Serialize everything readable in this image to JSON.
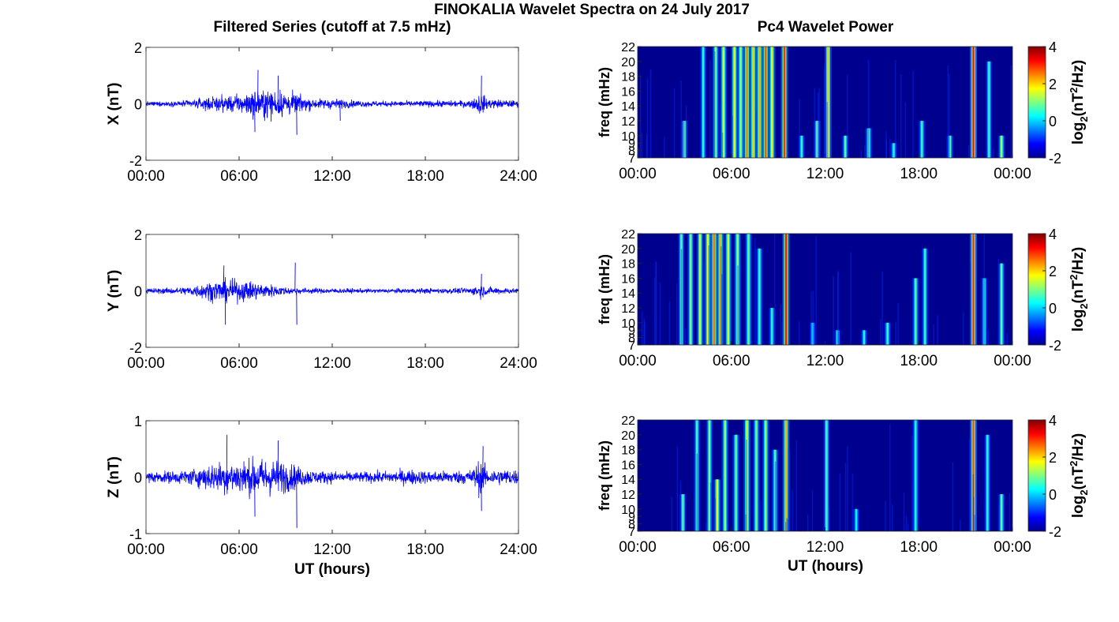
{
  "figure": {
    "title": "FINOKALIA Wavelet Spectra on 24 July 2017",
    "left_column_title": "Filtered Series (cutoff at 7.5 mHz)",
    "right_column_title": "Pc4 Wavelet Power",
    "x_label": "UT (hours)"
  },
  "colors": {
    "series_line": "#0000ff",
    "spectrogram_background": "#00008f",
    "colormap": "jet"
  },
  "chart_data": [
    {
      "type": "line",
      "name": "x-series",
      "ylabel": "X (nT)",
      "ylim": [
        -2,
        2
      ],
      "yticks": [
        "2",
        "0",
        "-2"
      ],
      "xlim": [
        0,
        24
      ],
      "xticks": [
        "00:00",
        "06:00",
        "12:00",
        "18:00",
        "24:00"
      ],
      "xtick_values": [
        0,
        6,
        12,
        18,
        24
      ],
      "amplitude_envelope": {
        "hours": [
          0,
          2,
          3,
          4,
          5,
          6,
          7,
          8,
          9,
          10,
          11,
          12,
          13,
          14,
          16,
          18,
          20,
          21,
          21.5,
          22,
          23,
          24
        ],
        "amplitude": [
          0.08,
          0.1,
          0.15,
          0.25,
          0.3,
          0.35,
          0.5,
          0.55,
          0.5,
          0.3,
          0.18,
          0.2,
          0.15,
          0.12,
          0.1,
          0.12,
          0.12,
          0.15,
          0.45,
          0.2,
          0.15,
          0.12
        ]
      },
      "spikes": [
        {
          "hour": 7.2,
          "y": 1.2
        },
        {
          "hour": 8.5,
          "y": 1.0
        },
        {
          "hour": 9.7,
          "y": -1.1
        },
        {
          "hour": 7.0,
          "y": -1.0
        },
        {
          "hour": 21.6,
          "y": 1.0
        },
        {
          "hour": 12.5,
          "y": -0.6
        }
      ]
    },
    {
      "type": "heatmap",
      "name": "x-power",
      "ylabel": "freq (mHz)",
      "yticks": [
        "7",
        "8",
        "9",
        "10",
        "12",
        "14",
        "16",
        "18",
        "20",
        "22"
      ],
      "ytick_values": [
        7,
        8,
        9,
        10,
        12,
        14,
        16,
        18,
        20,
        22
      ],
      "ylim": [
        7,
        22
      ],
      "xlim": [
        0,
        24
      ],
      "xticks": [
        "00:00",
        "06:00",
        "12:00",
        "18:00",
        "00:00"
      ],
      "xtick_values": [
        0,
        6,
        12,
        18,
        24
      ],
      "colorbar": {
        "label": "log2(nT2/Hz)",
        "ticks": [
          "4",
          "2",
          "0",
          "-2"
        ],
        "tick_values": [
          4,
          2,
          0,
          -2
        ],
        "range": [
          -2,
          4
        ]
      },
      "events": [
        {
          "hour": 3.0,
          "f_low": 7,
          "f_high": 12,
          "level": 1.0
        },
        {
          "hour": 4.2,
          "f_low": 7,
          "f_high": 22,
          "level": 0.5
        },
        {
          "hour": 5.0,
          "f_low": 7,
          "f_high": 22,
          "level": 1.2
        },
        {
          "hour": 5.5,
          "f_low": 7,
          "f_high": 22,
          "level": 1.5
        },
        {
          "hour": 6.2,
          "f_low": 7,
          "f_high": 22,
          "level": 1.8
        },
        {
          "hour": 6.6,
          "f_low": 7,
          "f_high": 22,
          "level": 1.2
        },
        {
          "hour": 7.0,
          "f_low": 7,
          "f_high": 22,
          "level": 2.5
        },
        {
          "hour": 7.4,
          "f_low": 7,
          "f_high": 22,
          "level": 2.0
        },
        {
          "hour": 7.8,
          "f_low": 7,
          "f_high": 22,
          "level": 2.2
        },
        {
          "hour": 8.2,
          "f_low": 7,
          "f_high": 22,
          "level": 2.8
        },
        {
          "hour": 8.6,
          "f_low": 7,
          "f_high": 22,
          "level": 1.8
        },
        {
          "hour": 9.4,
          "f_low": 7,
          "f_high": 22,
          "level": 3.0
        },
        {
          "hour": 10.5,
          "f_low": 7,
          "f_high": 10,
          "level": 0.5
        },
        {
          "hour": 11.5,
          "f_low": 7,
          "f_high": 12,
          "level": 1.0
        },
        {
          "hour": 12.2,
          "f_low": 7,
          "f_high": 22,
          "level": 2.0
        },
        {
          "hour": 13.3,
          "f_low": 7,
          "f_high": 10,
          "level": 0.8
        },
        {
          "hour": 14.8,
          "f_low": 7,
          "f_high": 11,
          "level": 1.0
        },
        {
          "hour": 16.4,
          "f_low": 7,
          "f_high": 9,
          "level": 0.5
        },
        {
          "hour": 18.2,
          "f_low": 7,
          "f_high": 12,
          "level": 0.6
        },
        {
          "hour": 20.0,
          "f_low": 7,
          "f_high": 10,
          "level": 0.8
        },
        {
          "hour": 21.5,
          "f_low": 7,
          "f_high": 22,
          "level": 3.2
        },
        {
          "hour": 22.5,
          "f_low": 7,
          "f_high": 20,
          "level": 0.6
        },
        {
          "hour": 23.3,
          "f_low": 7,
          "f_high": 10,
          "level": 1.2
        }
      ]
    },
    {
      "type": "line",
      "name": "y-series",
      "ylabel": "Y (nT)",
      "ylim": [
        -2,
        2
      ],
      "yticks": [
        "2",
        "0",
        "-2"
      ],
      "xlim": [
        0,
        24
      ],
      "xticks": [
        "00:00",
        "06:00",
        "12:00",
        "18:00",
        "24:00"
      ],
      "xtick_values": [
        0,
        6,
        12,
        18,
        24
      ],
      "amplitude_envelope": {
        "hours": [
          0,
          2,
          3,
          4,
          5,
          6,
          7,
          8,
          9,
          10,
          11,
          12,
          14,
          16,
          18,
          20,
          21,
          21.5,
          22,
          23,
          24
        ],
        "amplitude": [
          0.1,
          0.12,
          0.2,
          0.35,
          0.45,
          0.4,
          0.35,
          0.25,
          0.15,
          0.12,
          0.1,
          0.1,
          0.08,
          0.08,
          0.1,
          0.1,
          0.12,
          0.3,
          0.15,
          0.12,
          0.1
        ]
      },
      "spikes": [
        {
          "hour": 5.0,
          "y": 0.9
        },
        {
          "hour": 5.1,
          "y": -1.2
        },
        {
          "hour": 9.6,
          "y": 1.0
        },
        {
          "hour": 9.7,
          "y": -1.2
        },
        {
          "hour": 21.6,
          "y": 0.6
        }
      ]
    },
    {
      "type": "heatmap",
      "name": "y-power",
      "ylabel": "freq (mHz)",
      "yticks": [
        "7",
        "8",
        "9",
        "10",
        "12",
        "14",
        "16",
        "18",
        "20",
        "22"
      ],
      "ytick_values": [
        7,
        8,
        9,
        10,
        12,
        14,
        16,
        18,
        20,
        22
      ],
      "ylim": [
        7,
        22
      ],
      "xlim": [
        0,
        24
      ],
      "xticks": [
        "00:00",
        "06:00",
        "12:00",
        "18:00",
        "00:00"
      ],
      "xtick_values": [
        0,
        6,
        12,
        18,
        24
      ],
      "colorbar": {
        "label": "log2(nT2/Hz)",
        "ticks": [
          "4",
          "2",
          "0",
          "-2"
        ],
        "tick_values": [
          4,
          2,
          0,
          -2
        ],
        "range": [
          -2,
          4
        ]
      },
      "events": [
        {
          "hour": 2.8,
          "f_low": 7,
          "f_high": 22,
          "level": 0.8
        },
        {
          "hour": 3.4,
          "f_low": 7,
          "f_high": 22,
          "level": 1.0
        },
        {
          "hour": 4.0,
          "f_low": 7,
          "f_high": 22,
          "level": 1.5
        },
        {
          "hour": 4.5,
          "f_low": 7,
          "f_high": 22,
          "level": 1.8
        },
        {
          "hour": 4.9,
          "f_low": 7,
          "f_high": 22,
          "level": 2.6
        },
        {
          "hour": 5.3,
          "f_low": 7,
          "f_high": 22,
          "level": 2.2
        },
        {
          "hour": 5.8,
          "f_low": 7,
          "f_high": 22,
          "level": 1.6
        },
        {
          "hour": 6.4,
          "f_low": 7,
          "f_high": 22,
          "level": 1.2
        },
        {
          "hour": 7.1,
          "f_low": 7,
          "f_high": 22,
          "level": 0.9
        },
        {
          "hour": 7.8,
          "f_low": 7,
          "f_high": 20,
          "level": 0.6
        },
        {
          "hour": 8.6,
          "f_low": 7,
          "f_high": 12,
          "level": 0.5
        },
        {
          "hour": 9.5,
          "f_low": 7,
          "f_high": 22,
          "level": 3.2
        },
        {
          "hour": 11.2,
          "f_low": 7,
          "f_high": 10,
          "level": 0.3
        },
        {
          "hour": 12.8,
          "f_low": 7,
          "f_high": 9,
          "level": 0.5
        },
        {
          "hour": 14.5,
          "f_low": 7,
          "f_high": 9,
          "level": 0.4
        },
        {
          "hour": 16.0,
          "f_low": 7,
          "f_high": 10,
          "level": 0.6
        },
        {
          "hour": 17.8,
          "f_low": 7,
          "f_high": 16,
          "level": 0.8
        },
        {
          "hour": 18.4,
          "f_low": 7,
          "f_high": 20,
          "level": 0.6
        },
        {
          "hour": 21.5,
          "f_low": 7,
          "f_high": 22,
          "level": 3.0
        },
        {
          "hour": 22.2,
          "f_low": 7,
          "f_high": 16,
          "level": 0.5
        },
        {
          "hour": 23.3,
          "f_low": 7,
          "f_high": 18,
          "level": 0.8
        }
      ]
    },
    {
      "type": "line",
      "name": "z-series",
      "ylabel": "Z (nT)",
      "ylim": [
        -1,
        1
      ],
      "yticks": [
        "1",
        "0",
        "-1"
      ],
      "xlim": [
        0,
        24
      ],
      "xticks": [
        "00:00",
        "06:00",
        "12:00",
        "18:00",
        "24:00"
      ],
      "xtick_values": [
        0,
        6,
        12,
        18,
        24
      ],
      "amplitude_envelope": {
        "hours": [
          0,
          2,
          3,
          4,
          5,
          6,
          7,
          8,
          9,
          10,
          11,
          12,
          13,
          14,
          16,
          17,
          18,
          20,
          21,
          21.5,
          22,
          23,
          24
        ],
        "amplitude": [
          0.1,
          0.12,
          0.15,
          0.25,
          0.3,
          0.32,
          0.35,
          0.35,
          0.3,
          0.18,
          0.12,
          0.12,
          0.1,
          0.1,
          0.12,
          0.15,
          0.12,
          0.12,
          0.15,
          0.35,
          0.15,
          0.15,
          0.15
        ]
      },
      "spikes": [
        {
          "hour": 5.2,
          "y": 0.75
        },
        {
          "hour": 8.5,
          "y": 0.65
        },
        {
          "hour": 9.7,
          "y": -0.9
        },
        {
          "hour": 7.0,
          "y": -0.7
        },
        {
          "hour": 21.7,
          "y": 0.55
        },
        {
          "hour": 21.6,
          "y": -0.6
        }
      ]
    },
    {
      "type": "heatmap",
      "name": "z-power",
      "ylabel": "freq (mHz)",
      "yticks": [
        "7",
        "8",
        "9",
        "10",
        "12",
        "14",
        "16",
        "18",
        "20",
        "22"
      ],
      "ytick_values": [
        7,
        8,
        9,
        10,
        12,
        14,
        16,
        18,
        20,
        22
      ],
      "ylim": [
        7,
        22
      ],
      "xlim": [
        0,
        24
      ],
      "xticks": [
        "00:00",
        "06:00",
        "12:00",
        "18:00",
        "00:00"
      ],
      "xtick_values": [
        0,
        6,
        12,
        18,
        24
      ],
      "colorbar": {
        "label": "log2(nT2/Hz)",
        "ticks": [
          "4",
          "2",
          "0",
          "-2"
        ],
        "tick_values": [
          4,
          2,
          0,
          -2
        ],
        "range": [
          -2,
          4
        ]
      },
      "events": [
        {
          "hour": 2.9,
          "f_low": 7,
          "f_high": 12,
          "level": 0.8
        },
        {
          "hour": 3.8,
          "f_low": 7,
          "f_high": 22,
          "level": 0.7
        },
        {
          "hour": 4.6,
          "f_low": 7,
          "f_high": 22,
          "level": 1.0
        },
        {
          "hour": 5.1,
          "f_low": 7,
          "f_high": 14,
          "level": 1.8
        },
        {
          "hour": 5.6,
          "f_low": 7,
          "f_high": 22,
          "level": 1.2
        },
        {
          "hour": 6.3,
          "f_low": 7,
          "f_high": 20,
          "level": 0.9
        },
        {
          "hour": 7.0,
          "f_low": 7,
          "f_high": 22,
          "level": 1.6
        },
        {
          "hour": 7.6,
          "f_low": 7,
          "f_high": 22,
          "level": 1.0
        },
        {
          "hour": 8.2,
          "f_low": 7,
          "f_high": 22,
          "level": 1.2
        },
        {
          "hour": 8.8,
          "f_low": 7,
          "f_high": 18,
          "level": 0.8
        },
        {
          "hour": 9.5,
          "f_low": 7,
          "f_high": 22,
          "level": 2.2
        },
        {
          "hour": 12.1,
          "f_low": 7,
          "f_high": 22,
          "level": 0.7
        },
        {
          "hour": 14.0,
          "f_low": 7,
          "f_high": 10,
          "level": 0.3
        },
        {
          "hour": 17.8,
          "f_low": 7,
          "f_high": 22,
          "level": 0.5
        },
        {
          "hour": 21.5,
          "f_low": 7,
          "f_high": 22,
          "level": 2.8
        },
        {
          "hour": 22.4,
          "f_low": 7,
          "f_high": 20,
          "level": 0.5
        },
        {
          "hour": 23.3,
          "f_low": 7,
          "f_high": 12,
          "level": 0.8
        }
      ]
    }
  ]
}
